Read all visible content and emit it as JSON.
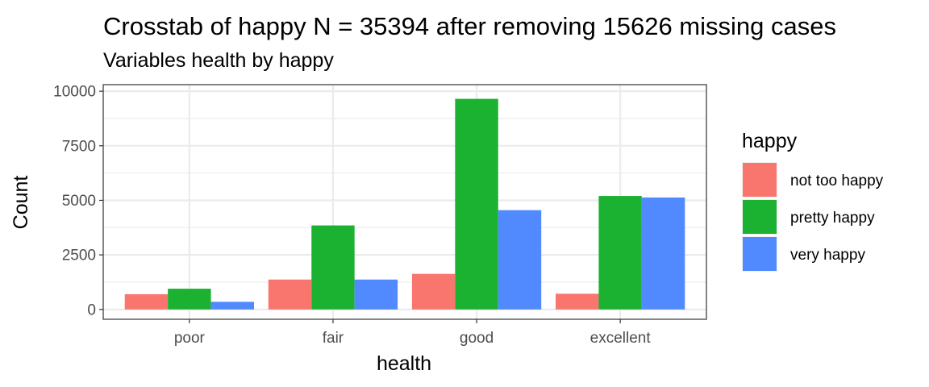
{
  "chart_data": {
    "type": "bar",
    "title": "Crosstab of happy N = 35394 after removing 15626 missing cases",
    "subtitle": "Variables health by happy",
    "xlabel": "health",
    "ylabel": "Count",
    "categories": [
      "poor",
      "fair",
      "good",
      "excellent"
    ],
    "series": [
      {
        "name": "not too happy",
        "color": "#F8766D",
        "values": [
          700,
          1370,
          1630,
          720
        ]
      },
      {
        "name": "pretty happy",
        "color": "#1BB232",
        "values": [
          950,
          3850,
          9650,
          5200
        ]
      },
      {
        "name": "very happy",
        "color": "#518AFF",
        "values": [
          350,
          1370,
          4550,
          5130
        ]
      }
    ],
    "ylim": [
      -450,
      10300
    ],
    "yticks": [
      0,
      2500,
      5000,
      7500,
      10000
    ],
    "ytick_labels": [
      "0",
      "2500",
      "5000",
      "7500",
      "10000"
    ],
    "grid": true,
    "legend_title": "happy",
    "legend_position": "right"
  }
}
